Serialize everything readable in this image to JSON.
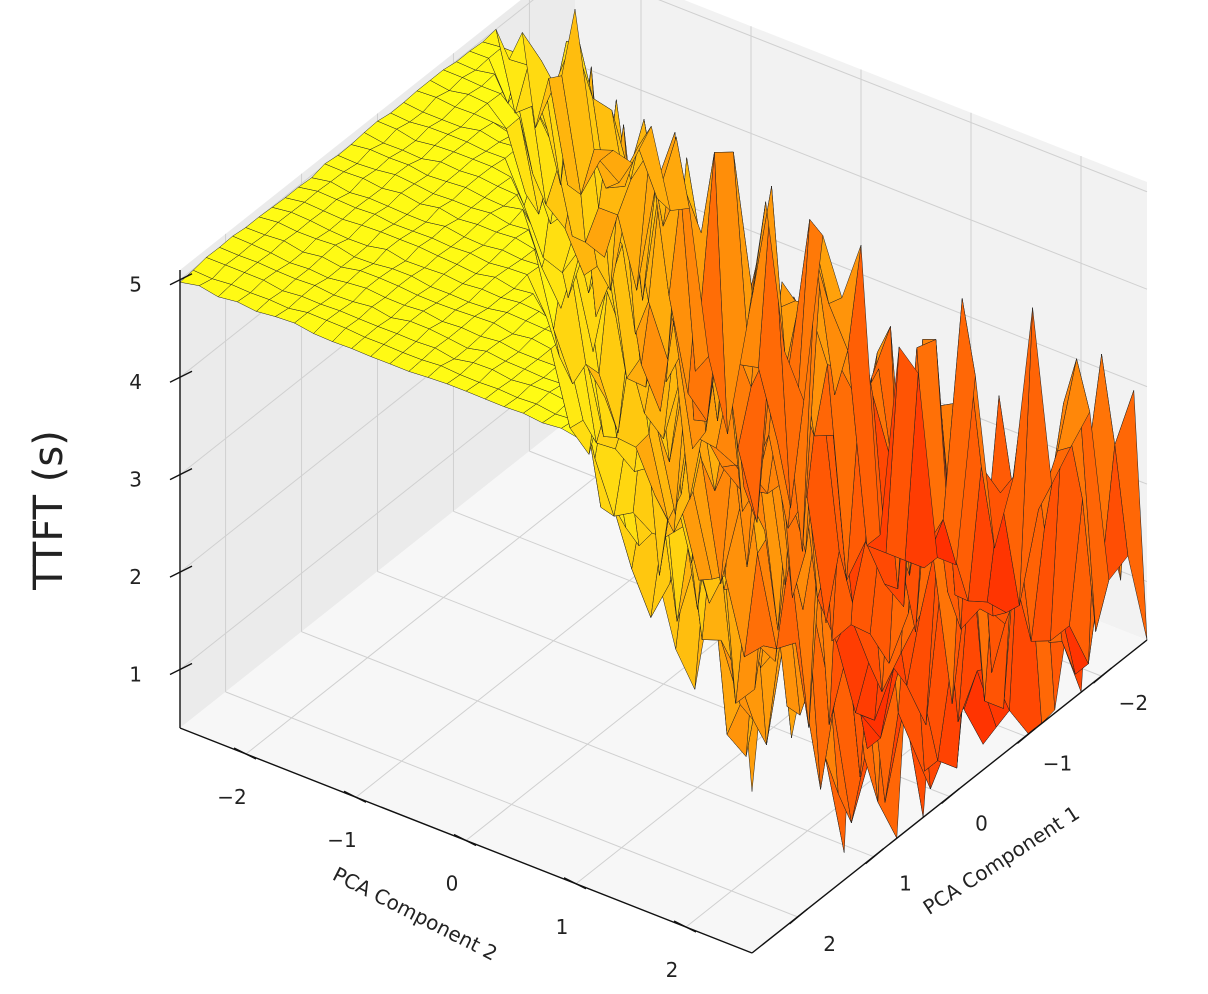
{
  "chart_data": {
    "type": "surface",
    "title": "",
    "xlabel": "PCA Component 1",
    "ylabel": "PCA Component 2",
    "zlabel": "TTFT (s)",
    "xlim": [
      -2.6,
      2.6
    ],
    "ylim": [
      -2.6,
      2.6
    ],
    "zlim": [
      0.4,
      5.1
    ],
    "xticks": [
      {
        "value": -2,
        "label": "−2"
      },
      {
        "value": -1,
        "label": "−1"
      },
      {
        "value": 0,
        "label": "0"
      },
      {
        "value": 1,
        "label": "1"
      },
      {
        "value": 2,
        "label": "2"
      }
    ],
    "yticks": [
      {
        "value": -2,
        "label": "−2"
      },
      {
        "value": -1,
        "label": "−1"
      },
      {
        "value": 0,
        "label": "0"
      },
      {
        "value": 1,
        "label": "1"
      },
      {
        "value": 2,
        "label": "2"
      }
    ],
    "zticks": [
      {
        "value": 1,
        "label": "1"
      },
      {
        "value": 2,
        "label": "2"
      },
      {
        "value": 3,
        "label": "3"
      },
      {
        "value": 4,
        "label": "4"
      },
      {
        "value": 5,
        "label": "5"
      }
    ],
    "grid": true,
    "colormap": "autumn_r",
    "surface": {
      "grid_size": 30,
      "plateau_value": 5.0,
      "min_value": 0.4,
      "description_of_shape": ""
    },
    "colors": {
      "low": "#ff0000",
      "high": "#ffff00",
      "edge": "#222222",
      "pane": "#f2f2f2",
      "grid": "#d0d0d0"
    }
  }
}
